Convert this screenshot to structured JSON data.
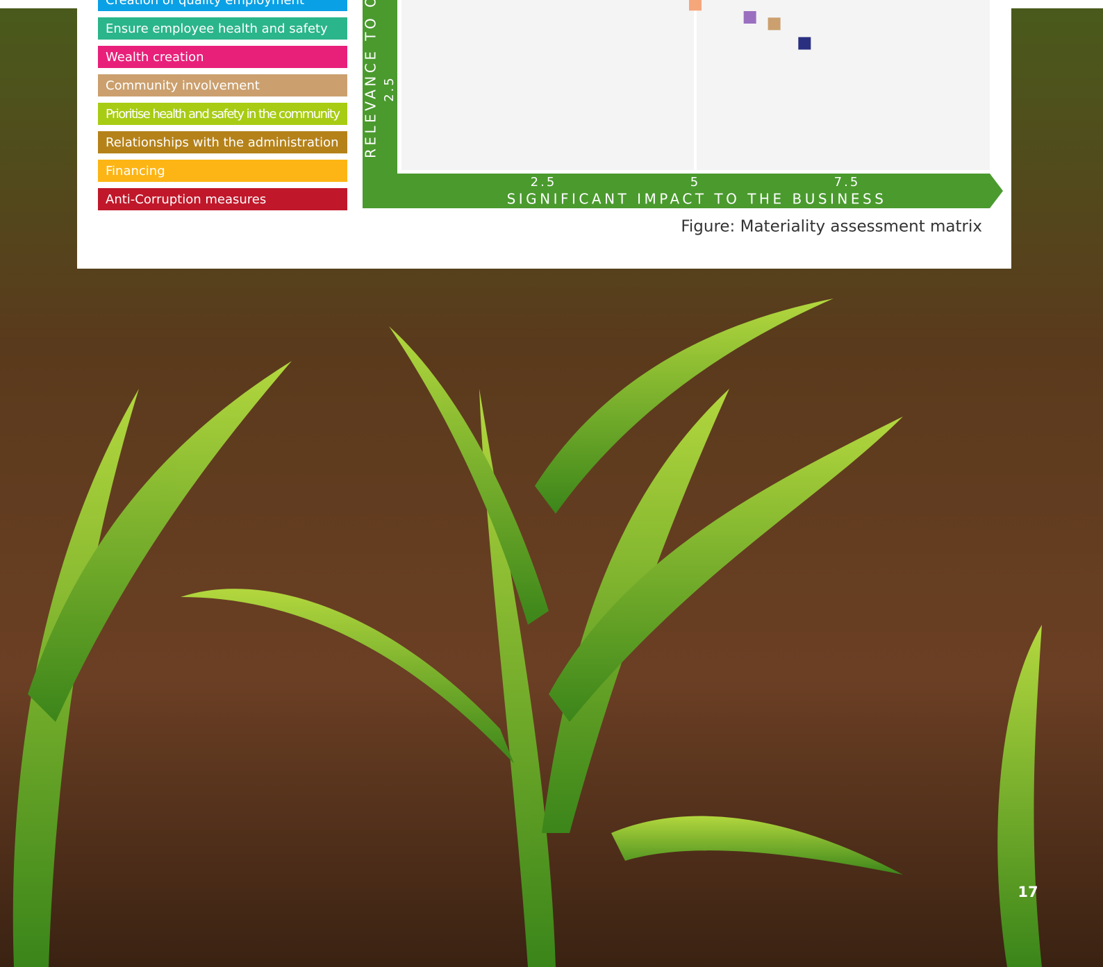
{
  "legend": [
    {
      "name": "Creation of quality employment",
      "color": "#0aa0e6"
    },
    {
      "name": "Ensure employee health and safety",
      "color": "#2bb58a"
    },
    {
      "name": "Wealth creation",
      "color": "#e8207a"
    },
    {
      "name": "Community involvement",
      "color": "#cba06e"
    },
    {
      "name": "Prioritise health and safety in the community",
      "color": "#a8cc14"
    },
    {
      "name": "Relationships with the administration",
      "color": "#b5821a"
    },
    {
      "name": "Financing",
      "color": "#fdb515"
    },
    {
      "name": "Anti-Corruption measures",
      "color": "#c0182a"
    }
  ],
  "chart_data": {
    "type": "scatter",
    "x_label": "SIGNIFICANT IMPACT TO THE BUSINESS",
    "y_label": "RELEVANCE TO OU",
    "x": [
      5.0,
      5.9,
      6.3,
      6.8
    ],
    "values": [
      5.1,
      4.7,
      4.5,
      3.9
    ],
    "colors": [
      "#f5a67a",
      "#9b6fc0",
      "#cba06e",
      "#2a2f80"
    ],
    "xlim": [
      0,
      10
    ],
    "ylim": [
      0,
      5.2
    ],
    "xticks": [
      2.5,
      5,
      7.5
    ],
    "yticks": [
      2.5
    ],
    "divider_x": 5
  },
  "caption": "Figure: Materiality assessment matrix",
  "page_number": "17"
}
